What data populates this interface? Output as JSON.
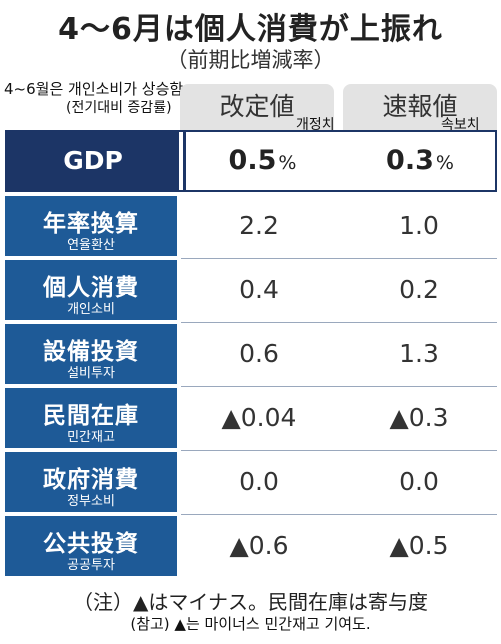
{
  "title": "4～6月は個人消費が上振れ",
  "subtitle": "（前期比増減率）",
  "translation_title": "4~6월은 개인소비가 상승함.",
  "translation_subtitle": "(전기대비 증감률)",
  "columns": [
    {
      "label": "改定値",
      "translation": "개정치"
    },
    {
      "label": "速報値",
      "translation": "속보치"
    }
  ],
  "gdp": {
    "label": "GDP",
    "revised": "0.5",
    "preliminary": "0.3",
    "unit": "%"
  },
  "rows": [
    {
      "label": "年率換算",
      "translation": "연율환산",
      "revised": "2.2",
      "preliminary": "1.0"
    },
    {
      "label": "個人消費",
      "translation": "개인소비",
      "revised": "0.4",
      "preliminary": "0.2"
    },
    {
      "label": "設備投資",
      "translation": "설비투자",
      "revised": "0.6",
      "preliminary": "1.3"
    },
    {
      "label": "民間在庫",
      "translation": "민간재고",
      "revised": "▲0.04",
      "preliminary": "▲0.3"
    },
    {
      "label": "政府消費",
      "translation": "정부소비",
      "revised": "0.0",
      "preliminary": "0.0"
    },
    {
      "label": "公共投資",
      "translation": "공공투자",
      "revised": "▲0.6",
      "preliminary": "▲0.5"
    }
  ],
  "note": "（注）▲はマイナス。民間在庫は寄与度",
  "note_translation": "(참고) ▲는 마이너스 민간재고 기여도."
}
